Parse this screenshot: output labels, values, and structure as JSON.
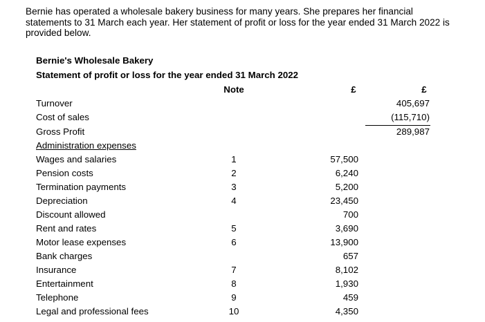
{
  "intro": "Bernie has operated a wholesale bakery business for many years. She prepares her financial statements to 31 March each year. Her statement of profit or loss for the year ended 31 March 2022 is provided below.",
  "company": "Bernie's Wholesale Bakery",
  "statement_title": "Statement of profit or loss for the year ended 31 March 2022",
  "headers": {
    "note": "Note",
    "col1": "£",
    "col2": "£"
  },
  "rows": [
    {
      "label": "Turnover",
      "note": "",
      "col1": "",
      "col2": "405,697"
    },
    {
      "label": "Cost of sales",
      "note": "",
      "col1": "",
      "col2": "(115,710)"
    },
    {
      "label": "Gross Profit",
      "note": "",
      "col1": "",
      "col2": "289,987"
    },
    {
      "label": "Administration expenses",
      "note": "",
      "col1": "",
      "col2": ""
    },
    {
      "label": "Wages and salaries",
      "note": "1",
      "col1": "57,500",
      "col2": ""
    },
    {
      "label": "Pension costs",
      "note": "2",
      "col1": "6,240",
      "col2": ""
    },
    {
      "label": "Termination payments",
      "note": "3",
      "col1": "5,200",
      "col2": ""
    },
    {
      "label": "Depreciation",
      "note": "4",
      "col1": "23,450",
      "col2": ""
    },
    {
      "label": "Discount allowed",
      "note": "",
      "col1": "700",
      "col2": ""
    },
    {
      "label": "Rent and rates",
      "note": "5",
      "col1": "3,690",
      "col2": ""
    },
    {
      "label": "Motor lease expenses",
      "note": "6",
      "col1": "13,900",
      "col2": ""
    },
    {
      "label": "Bank charges",
      "note": "",
      "col1": "657",
      "col2": ""
    },
    {
      "label": "Insurance",
      "note": "7",
      "col1": "8,102",
      "col2": ""
    },
    {
      "label": "Entertainment",
      "note": "8",
      "col1": "1,930",
      "col2": ""
    },
    {
      "label": "Telephone",
      "note": "9",
      "col1": "459",
      "col2": ""
    },
    {
      "label": "Legal and professional fees",
      "note": "10",
      "col1": "4,350",
      "col2": ""
    }
  ]
}
